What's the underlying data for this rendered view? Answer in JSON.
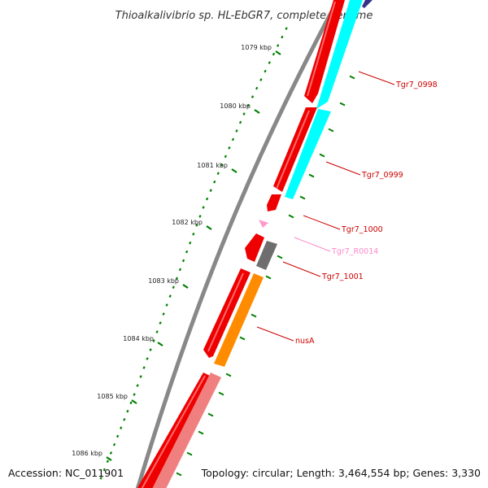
{
  "title": "Thioalkalivibrio sp. HL-EbGR7, complete genome",
  "accession": "Accession: NC_011901",
  "topology": "Topology: circular; Length: 3,464,554 bp; Genes: 3,330",
  "scale_ticks": [
    {
      "label": "1079 kbp"
    },
    {
      "label": "1080 kbp"
    },
    {
      "label": "1081 kbp"
    },
    {
      "label": "1082 kbp"
    },
    {
      "label": "1083 kbp"
    },
    {
      "label": "1084 kbp"
    },
    {
      "label": "1085 kbp"
    },
    {
      "label": "1086 kbp"
    }
  ],
  "colors": {
    "backbone": "#888888",
    "cds": "#ee0000",
    "cog_cyan": "#00ffff",
    "cog_orange": "#ff8c00",
    "cog_gray": "#6e6e6e",
    "cog_pink": "#f08080",
    "trna": "#ff99cc",
    "ticks": "#008000",
    "label_red": "#cc0000",
    "label_pink": "#ff88cc"
  },
  "gene_labels": [
    {
      "name": "Tgr7_0998",
      "color": "#cc0000"
    },
    {
      "name": "Tgr7_0999",
      "color": "#cc0000"
    },
    {
      "name": "Tgr7_1000",
      "color": "#cc0000"
    },
    {
      "name": "Tgr7_R0014",
      "color": "#ff88cc"
    },
    {
      "name": "Tgr7_1001",
      "color": "#cc0000"
    },
    {
      "name": "nusA",
      "color": "#cc0000"
    }
  ]
}
